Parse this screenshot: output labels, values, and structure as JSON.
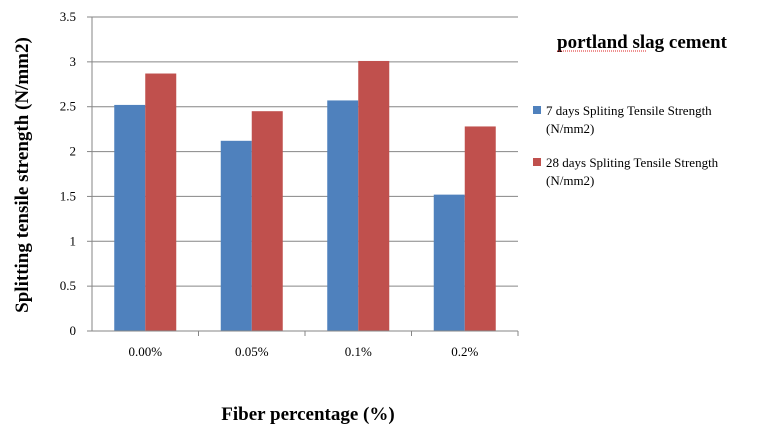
{
  "chart_data": {
    "type": "bar",
    "title": "portland slag cement",
    "xlabel": "Fiber percentage  (%)",
    "ylabel": "Splitting tensile strength (N/mm2)",
    "categories": [
      "0.00%",
      "0.05%",
      "0.1%",
      "0.2%"
    ],
    "ylim": [
      0,
      3.5
    ],
    "yticks": [
      "0",
      "0.5",
      "1",
      "1.5",
      "2",
      "2.5",
      "3",
      "3.5"
    ],
    "grid": true,
    "legend_position": "right",
    "series": [
      {
        "name_line1": "7 days Spliting  Tensile Strength",
        "name_line2": "(N/mm2)",
        "color": "#4F81BD",
        "values": [
          2.52,
          2.12,
          2.57,
          1.52
        ]
      },
      {
        "name_line1": "28 days Spliting  Tensile Strength",
        "name_line2": "(N/mm2)",
        "color": "#C0504D",
        "values": [
          2.87,
          2.45,
          3.01,
          2.28
        ]
      }
    ]
  }
}
